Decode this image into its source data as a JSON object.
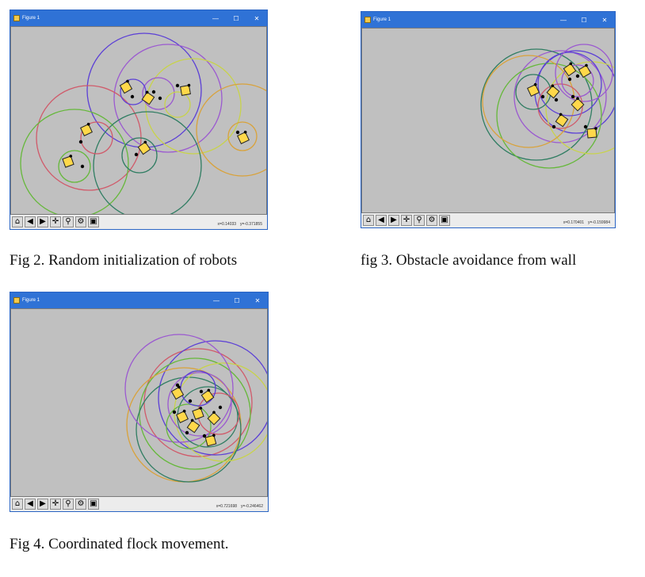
{
  "figures": [
    {
      "window_title": "Figure 1",
      "controls": {
        "minimize": "—",
        "maximize": "☐",
        "close": "✕"
      },
      "toolbar_icons": [
        "home-icon",
        "back-arrow-icon",
        "forward-arrow-icon",
        "pan-icon",
        "zoom-icon",
        "configure-subplots-icon",
        "save-icon"
      ],
      "x_readout": "x=0.14033",
      "y_readout": "y=-0.371855",
      "caption": "Fig 2. Random initialization of robots"
    },
    {
      "window_title": "Figure 1",
      "controls": {
        "minimize": "—",
        "maximize": "☐",
        "close": "✕"
      },
      "toolbar_icons": [
        "home-icon",
        "back-arrow-icon",
        "forward-arrow-icon",
        "pan-icon",
        "zoom-icon",
        "configure-subplots-icon",
        "save-icon"
      ],
      "x_readout": "x=0.170401",
      "y_readout": "y=-0.159984",
      "caption": "fig 3. Obstacle avoidance from wall"
    },
    {
      "window_title": "Figure 1",
      "controls": {
        "minimize": "—",
        "maximize": "☐",
        "close": "✕"
      },
      "toolbar_icons": [
        "home-icon",
        "back-arrow-icon",
        "forward-arrow-icon",
        "pan-icon",
        "zoom-icon",
        "configure-subplots-icon",
        "save-icon"
      ],
      "x_readout": "x=0.721698",
      "y_readout": "y=-0.246462",
      "caption": "Fig 4. Coordinated flock movement."
    }
  ],
  "colors": {
    "titlebar": "#2f72d6",
    "plot_background": "#c0c0c0",
    "robot_fill": "#ffd84a",
    "robot_stroke": "#222222",
    "circle_colors": [
      "#5b3fd6",
      "#d05a6a",
      "#65b83a",
      "#2f7d62",
      "#c8d34a",
      "#d9a23a",
      "#9b59d0"
    ]
  }
}
